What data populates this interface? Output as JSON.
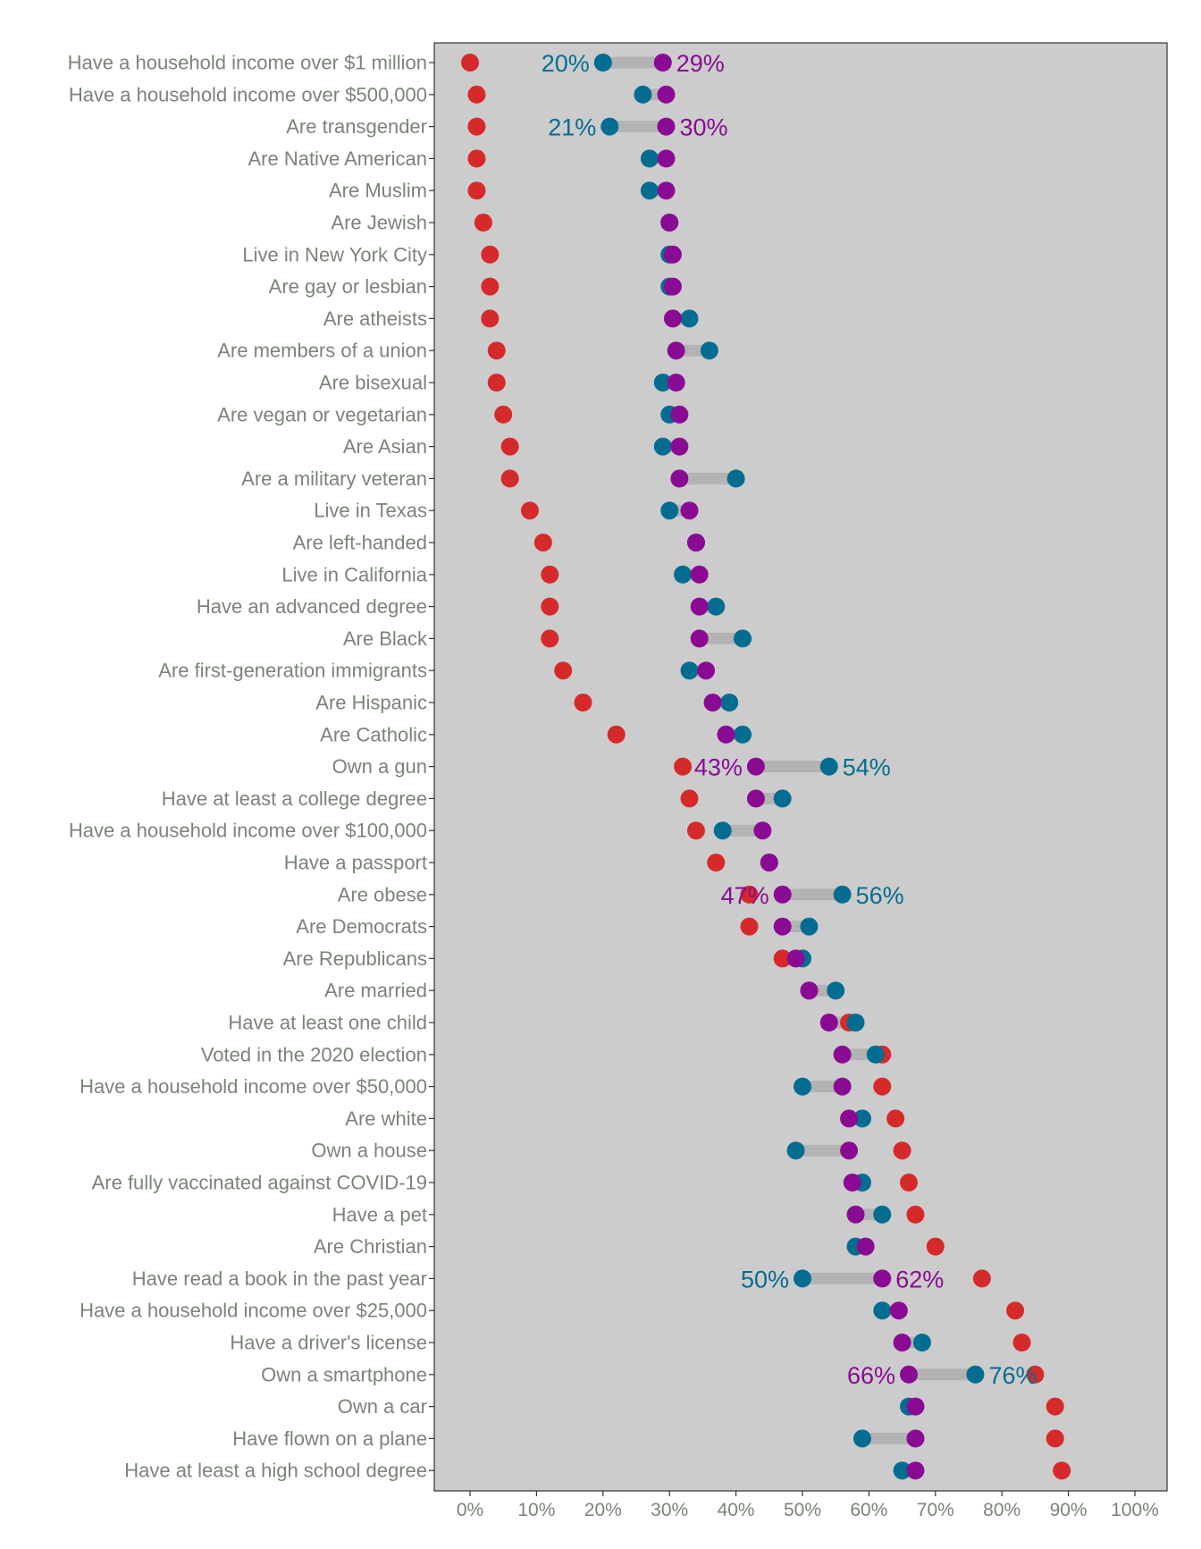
{
  "colors": {
    "actual": "#d62a2a",
    "estimate_blue": "#036d91",
    "estimate_purple": "#8b0a94",
    "panel": "#cccccc",
    "range_bar": "#b3b3b3",
    "text": "#7a8478"
  },
  "chart_data": {
    "type": "scatter",
    "subtype": "dumbbell",
    "title": "",
    "xlabel": "",
    "ylabel": "",
    "xlim": [
      -5,
      105
    ],
    "x_ticks": [
      "0%",
      "10%",
      "20%",
      "30%",
      "40%",
      "50%",
      "60%",
      "70%",
      "80%",
      "90%",
      "100%"
    ],
    "x_tick_values": [
      0,
      10,
      20,
      30,
      40,
      50,
      60,
      70,
      80,
      90,
      100
    ],
    "grid": false,
    "legend": "none",
    "series_keys": [
      "actual",
      "blue",
      "purple"
    ],
    "rows": [
      {
        "label": "Have a household income over $1 million",
        "actual": 0,
        "blue": 20,
        "purple": 29,
        "label_blue": "20%",
        "label_purple": "29%"
      },
      {
        "label": "Have a household income over $500,000",
        "actual": 1,
        "blue": 26,
        "purple": 29.5
      },
      {
        "label": "Are transgender",
        "actual": 1,
        "blue": 21,
        "purple": 29.5,
        "label_blue": "21%",
        "label_purple": "30%"
      },
      {
        "label": "Are Native American",
        "actual": 1,
        "blue": 27,
        "purple": 29.5
      },
      {
        "label": "Are Muslim",
        "actual": 1,
        "blue": 27,
        "purple": 29.5
      },
      {
        "label": "Are Jewish",
        "actual": 2,
        "blue": 30,
        "purple": 30
      },
      {
        "label": "Live in New York City",
        "actual": 3,
        "blue": 30,
        "purple": 30.5
      },
      {
        "label": "Are gay or lesbian",
        "actual": 3,
        "blue": 30,
        "purple": 30.5
      },
      {
        "label": "Are atheists",
        "actual": 3,
        "blue": 33,
        "purple": 30.5
      },
      {
        "label": "Are members of a union",
        "actual": 4,
        "blue": 36,
        "purple": 31
      },
      {
        "label": "Are bisexual",
        "actual": 4,
        "blue": 29,
        "purple": 31
      },
      {
        "label": "Are vegan or vegetarian",
        "actual": 5,
        "blue": 30,
        "purple": 31.5
      },
      {
        "label": "Are Asian",
        "actual": 6,
        "blue": 29,
        "purple": 31.5
      },
      {
        "label": "Are a military veteran",
        "actual": 6,
        "blue": 40,
        "purple": 31.5
      },
      {
        "label": "Live in Texas",
        "actual": 9,
        "blue": 30,
        "purple": 33
      },
      {
        "label": "Are left-handed",
        "actual": 11,
        "blue": 34,
        "purple": 34
      },
      {
        "label": "Live in California",
        "actual": 12,
        "blue": 32,
        "purple": 34.5
      },
      {
        "label": "Have an advanced degree",
        "actual": 12,
        "blue": 37,
        "purple": 34.5
      },
      {
        "label": "Are Black",
        "actual": 12,
        "blue": 41,
        "purple": 34.5
      },
      {
        "label": "Are first-generation immigrants",
        "actual": 14,
        "blue": 33,
        "purple": 35.5
      },
      {
        "label": "Are Hispanic",
        "actual": 17,
        "blue": 39,
        "purple": 36.5
      },
      {
        "label": "Are Catholic",
        "actual": 22,
        "blue": 41,
        "purple": 38.5
      },
      {
        "label": "Own a gun",
        "actual": 32,
        "blue": 54,
        "purple": 43,
        "label_blue": "54%",
        "label_purple": "43%"
      },
      {
        "label": "Have at least a college degree",
        "actual": 33,
        "blue": 47,
        "purple": 43
      },
      {
        "label": "Have a household income over $100,000",
        "actual": 34,
        "blue": 38,
        "purple": 44
      },
      {
        "label": "Have a passport",
        "actual": 37,
        "blue": 45,
        "purple": 45
      },
      {
        "label": "Are obese",
        "actual": 42,
        "blue": 56,
        "purple": 47,
        "label_blue": "56%",
        "label_purple": "47%"
      },
      {
        "label": "Are Democrats",
        "actual": 42,
        "blue": 51,
        "purple": 47
      },
      {
        "label": "Are Republicans",
        "actual": 47,
        "blue": 50,
        "purple": 49
      },
      {
        "label": "Are married",
        "actual": 51,
        "blue": 55,
        "purple": 51
      },
      {
        "label": "Have at least one child",
        "actual": 57,
        "blue": 58,
        "purple": 54
      },
      {
        "label": "Voted in the 2020 election",
        "actual": 62,
        "blue": 61,
        "purple": 56
      },
      {
        "label": "Have a household income over $50,000",
        "actual": 62,
        "blue": 50,
        "purple": 56
      },
      {
        "label": "Are white",
        "actual": 64,
        "blue": 59,
        "purple": 57
      },
      {
        "label": "Own a house",
        "actual": 65,
        "blue": 49,
        "purple": 57
      },
      {
        "label": "Are fully vaccinated against COVID-19",
        "actual": 66,
        "blue": 59,
        "purple": 57.5
      },
      {
        "label": "Have a pet",
        "actual": 67,
        "blue": 62,
        "purple": 58
      },
      {
        "label": "Are Christian",
        "actual": 70,
        "blue": 58,
        "purple": 59.5
      },
      {
        "label": "Have read a book in the past year",
        "actual": 77,
        "blue": 50,
        "purple": 62,
        "label_blue": "50%",
        "label_purple": "62%"
      },
      {
        "label": "Have a household income over $25,000",
        "actual": 82,
        "blue": 62,
        "purple": 64.5
      },
      {
        "label": "Have a driver's license",
        "actual": 83,
        "blue": 68,
        "purple": 65
      },
      {
        "label": "Own a smartphone",
        "actual": 85,
        "blue": 76,
        "purple": 66,
        "label_blue": "76%",
        "label_purple": "66%"
      },
      {
        "label": "Own a car",
        "actual": 88,
        "blue": 66,
        "purple": 67
      },
      {
        "label": "Have flown on a plane",
        "actual": 88,
        "blue": 59,
        "purple": 67
      },
      {
        "label": "Have at least a high school degree",
        "actual": 89,
        "blue": 65,
        "purple": 67
      }
    ]
  }
}
